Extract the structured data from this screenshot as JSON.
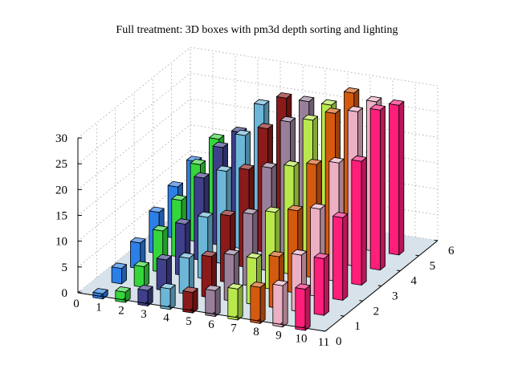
{
  "chart_data": {
    "type": "bar3d",
    "title": "Full treatment: 3D boxes with pm3d depth sorting and lighting",
    "x_ticks": [
      "0",
      "1",
      "2",
      "3",
      "4",
      "5",
      "6",
      "7",
      "8",
      "9",
      "10",
      "11"
    ],
    "y_ticks": [
      "0",
      "1",
      "2",
      "3",
      "4",
      "5",
      "6"
    ],
    "z_ticks": [
      "0",
      "5",
      "10",
      "15",
      "20",
      "25",
      "30"
    ],
    "xlim": [
      0,
      11
    ],
    "ylim": [
      0,
      6
    ],
    "zlim": [
      0,
      30
    ],
    "grid": true,
    "floor_color": "#d3dfe8",
    "categories_x": [
      1,
      2,
      3,
      4,
      5,
      6,
      7,
      8,
      9,
      10
    ],
    "series": [
      {
        "y": 0,
        "values": [
          1,
          2,
          3,
          4,
          4,
          5,
          6,
          7,
          8,
          8
        ]
      },
      {
        "y": 1,
        "values": [
          3,
          4,
          6,
          7,
          8,
          9,
          9,
          10,
          11,
          11
        ]
      },
      {
        "y": 2,
        "values": [
          5,
          8,
          10,
          12,
          13,
          14,
          15,
          16,
          17,
          16
        ]
      },
      {
        "y": 3,
        "values": [
          8,
          11,
          16,
          18,
          19,
          20,
          21,
          22,
          23,
          24
        ]
      },
      {
        "y": 4,
        "values": [
          10,
          15,
          19,
          22,
          24,
          26,
          27,
          29,
          30,
          31
        ]
      },
      {
        "y": 5,
        "values": [
          12,
          17,
          19,
          25,
          27,
          27,
          27,
          30,
          29,
          29
        ]
      }
    ],
    "colors": [
      "#2d7fe8",
      "#34d63c",
      "#3f3f8c",
      "#6cb6d8",
      "#8b1a1a",
      "#9a7f9a",
      "#b8e84c",
      "#d45a10",
      "#ebb0c4",
      "#ff1e7a"
    ]
  }
}
